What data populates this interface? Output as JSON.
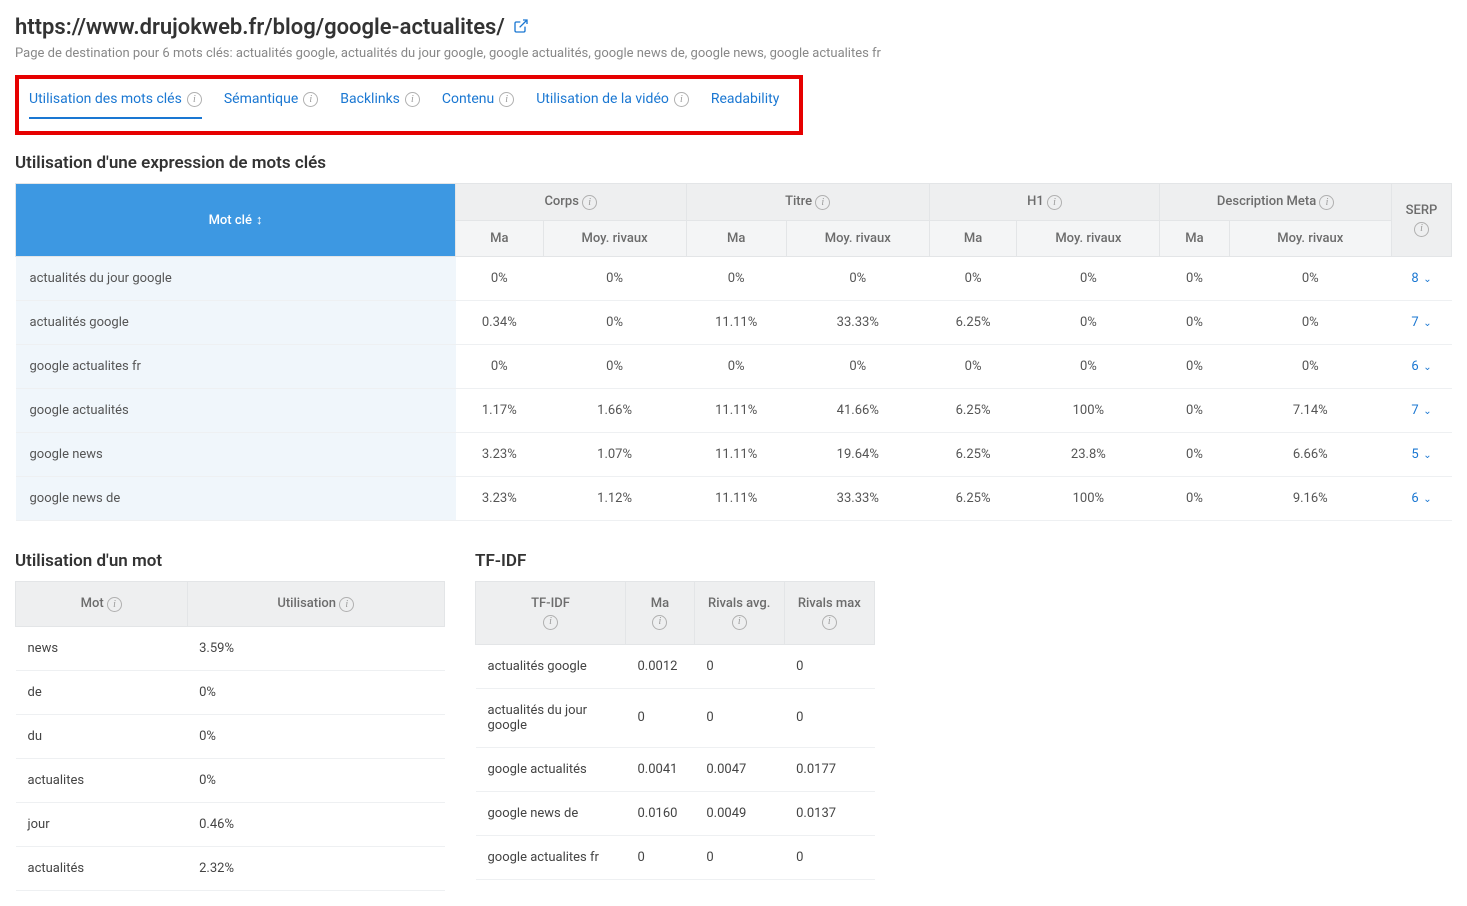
{
  "header": {
    "url": "https://www.drujokweb.fr/blog/google-actualites/",
    "subtitle": "Page de destination pour 6 mots clés: actualités google, actualités du jour google, google actualités, google news de, google news, google actualites fr"
  },
  "tabs": {
    "items": [
      {
        "label": "Utilisation des mots clés",
        "info": true,
        "active": true
      },
      {
        "label": "Sémantique",
        "info": true,
        "active": false
      },
      {
        "label": "Backlinks",
        "info": true,
        "active": false
      },
      {
        "label": "Contenu",
        "info": true,
        "active": false
      },
      {
        "label": "Utilisation de la vidéo",
        "info": true,
        "active": false
      },
      {
        "label": "Readability",
        "info": false,
        "active": false
      }
    ]
  },
  "main_table": {
    "title": "Utilisation d'une expression de mots clés",
    "col_keyword": "Mot clé",
    "groups": [
      {
        "label": "Corps",
        "sub": [
          "Ma",
          "Moy. rivaux"
        ]
      },
      {
        "label": "Titre",
        "sub": [
          "Ma",
          "Moy. rivaux"
        ]
      },
      {
        "label": "H1",
        "sub": [
          "Ma",
          "Moy. rivaux"
        ]
      },
      {
        "label": "Description Meta",
        "sub": [
          "Ma",
          "Moy. rivaux"
        ]
      }
    ],
    "col_serp": "SERP",
    "rows": [
      {
        "kw": "actualités du jour google",
        "cells": [
          {
            "v": "0%"
          },
          {
            "v": "0%"
          },
          {
            "v": "0%"
          },
          {
            "v": "0%"
          },
          {
            "v": "0%"
          },
          {
            "v": "0%"
          },
          {
            "v": "0%"
          },
          {
            "v": "0%"
          }
        ],
        "serp": "8"
      },
      {
        "kw": "actualités google",
        "cells": [
          {
            "v": "0.34%"
          },
          {
            "v": "0%"
          },
          {
            "v": "11.11%"
          },
          {
            "v": "33.33%"
          },
          {
            "v": "6.25%",
            "red": true
          },
          {
            "v": "0%"
          },
          {
            "v": "0%"
          },
          {
            "v": "0%"
          }
        ],
        "serp": "7"
      },
      {
        "kw": "google actualites fr",
        "cells": [
          {
            "v": "0%"
          },
          {
            "v": "0%"
          },
          {
            "v": "0%"
          },
          {
            "v": "0%"
          },
          {
            "v": "0%"
          },
          {
            "v": "0%"
          },
          {
            "v": "0%"
          },
          {
            "v": "0%"
          }
        ],
        "serp": "6"
      },
      {
        "kw": "google actualités",
        "cells": [
          {
            "v": "1.17%"
          },
          {
            "v": "1.66%"
          },
          {
            "v": "11.11%"
          },
          {
            "v": "41.66%"
          },
          {
            "v": "6.25%"
          },
          {
            "v": "100%"
          },
          {
            "v": "0%"
          },
          {
            "v": "7.14%"
          }
        ],
        "serp": "7"
      },
      {
        "kw": "google news",
        "cells": [
          {
            "v": "3.23%",
            "red": true
          },
          {
            "v": "1.07%"
          },
          {
            "v": "11.11%"
          },
          {
            "v": "19.64%"
          },
          {
            "v": "6.25%"
          },
          {
            "v": "23.8%"
          },
          {
            "v": "0%"
          },
          {
            "v": "6.66%"
          }
        ],
        "serp": "5"
      },
      {
        "kw": "google news de",
        "cells": [
          {
            "v": "3.23%",
            "red": true
          },
          {
            "v": "1.12%"
          },
          {
            "v": "11.11%"
          },
          {
            "v": "33.33%"
          },
          {
            "v": "6.25%"
          },
          {
            "v": "100%"
          },
          {
            "v": "0%"
          },
          {
            "v": "9.16%"
          }
        ],
        "serp": "6"
      }
    ]
  },
  "word_table": {
    "title": "Utilisation d'un mot",
    "col_word": "Mot",
    "col_usage": "Utilisation",
    "rows": [
      {
        "w": "news",
        "u": "3.59%"
      },
      {
        "w": "de",
        "u": "0%"
      },
      {
        "w": "du",
        "u": "0%"
      },
      {
        "w": "actualites",
        "u": "0%"
      },
      {
        "w": "jour",
        "u": "0.46%"
      },
      {
        "w": "actualités",
        "u": "2.32%"
      }
    ]
  },
  "tfidf_table": {
    "title": "TF-IDF",
    "col_tfidf": "TF-IDF",
    "col_ma": "Ma",
    "col_ravg": "Rivals avg.",
    "col_rmax": "Rivals max",
    "rows": [
      {
        "kw": "actualités google",
        "ma": "0.0012",
        "ra": "0",
        "rm": "0"
      },
      {
        "kw": "actualités du jour google",
        "ma": "0",
        "ra": "0",
        "rm": "0"
      },
      {
        "kw": "google actualités",
        "ma": "0.0041",
        "ra": "0.0047",
        "rm": "0.0177"
      },
      {
        "kw": "google news de",
        "ma": "0.0160",
        "ra": "0.0049",
        "rm": "0.0137"
      },
      {
        "kw": "google actualites fr",
        "ma": "0",
        "ra": "0",
        "rm": "0"
      }
    ]
  }
}
